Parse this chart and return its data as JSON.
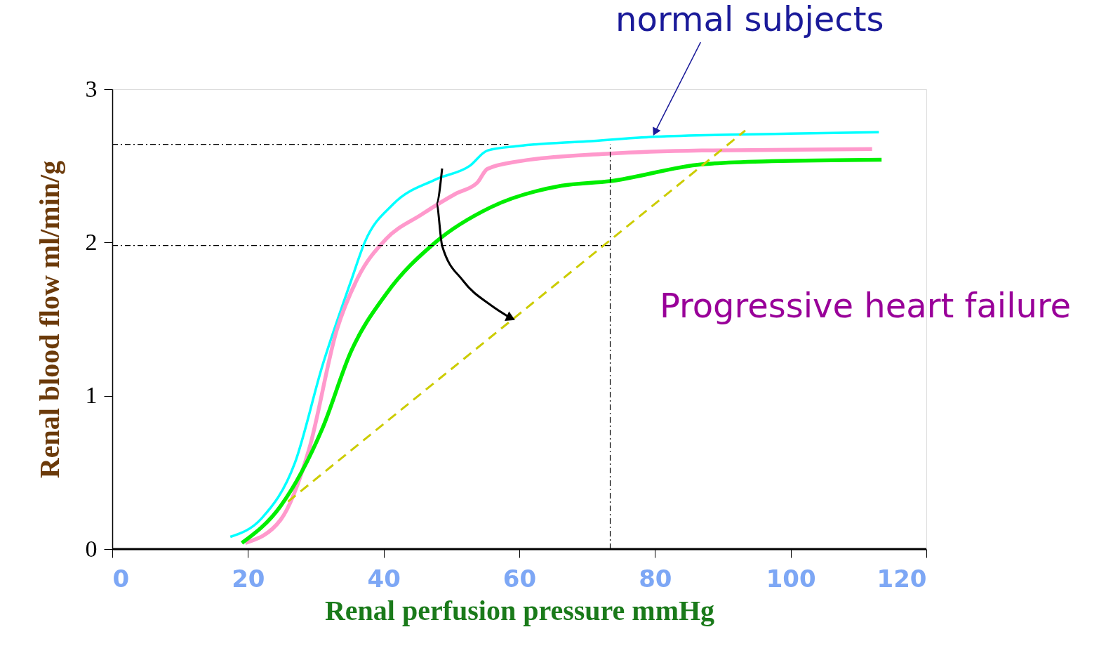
{
  "chart_data": {
    "type": "line",
    "xlabel": "Renal perfusion pressure mmHg",
    "ylabel": "Renal blood flow ml/min/g",
    "xlim": [
      0,
      120
    ],
    "xticks": [
      0,
      20,
      40,
      60,
      80,
      100,
      120
    ],
    "ylim": [
      0,
      3
    ],
    "yticks": [
      0,
      1,
      2,
      3
    ],
    "grid": false,
    "legend": false,
    "marker": "none",
    "series": [
      {
        "type": "line",
        "color": "#00ffff",
        "line_style": "solid",
        "x": [
          17.4,
          22,
          26.9,
          31,
          35.2,
          37.2,
          41.4,
          47.6,
          52.7,
          55.3,
          60,
          70,
          80,
          100,
          113
        ],
        "values": [
          0.08,
          0.2,
          0.56,
          1.2,
          1.75,
          2.0,
          2.25,
          2.41,
          2.5,
          2.6,
          2.63,
          2.66,
          2.69,
          2.71,
          2.72
        ]
      },
      {
        "type": "line",
        "color": "#ff99cc",
        "line_style": "solid",
        "x": [
          19.6,
          24.8,
          29,
          33.1,
          36.2,
          40.3,
          45.5,
          50.7,
          53.8,
          55.3,
          60,
          73.4,
          86.9,
          112
        ],
        "values": [
          0.04,
          0.19,
          0.65,
          1.43,
          1.77,
          2.02,
          2.18,
          2.32,
          2.39,
          2.48,
          2.53,
          2.58,
          2.6,
          2.61
        ]
      },
      {
        "type": "line",
        "color": "#00ee00",
        "line_style": "solid",
        "x": [
          19.1,
          24.8,
          31,
          35.2,
          40.3,
          47.6,
          55.8,
          66.2,
          73.4,
          86.9,
          97.2,
          113.4
        ],
        "values": [
          0.04,
          0.28,
          0.79,
          1.29,
          1.66,
          2.0,
          2.23,
          2.37,
          2.4,
          2.51,
          2.53,
          2.54
        ]
      },
      {
        "type": "line",
        "color": "#cccc00",
        "line_style": "dashed",
        "x": [
          25.9,
          93.3
        ],
        "values": [
          0.31,
          2.73
        ]
      },
      {
        "type": "line",
        "color": "#000000",
        "line_style": "dotted",
        "x": [
          0,
          58.4
        ],
        "values": [
          2.64,
          2.64
        ]
      },
      {
        "type": "line",
        "color": "#000000",
        "line_style": "dotted",
        "x": [
          0,
          73.4
        ],
        "values": [
          1.98,
          1.98
        ]
      },
      {
        "type": "line",
        "color": "#000000",
        "line_style": "dotted",
        "x": [
          73.4,
          73.4
        ],
        "values": [
          0,
          2.64
        ]
      }
    ],
    "annotations": [
      {
        "text": "normal subjects",
        "x": 80,
        "y": 2.72
      },
      "Progressive heart failure"
    ]
  }
}
